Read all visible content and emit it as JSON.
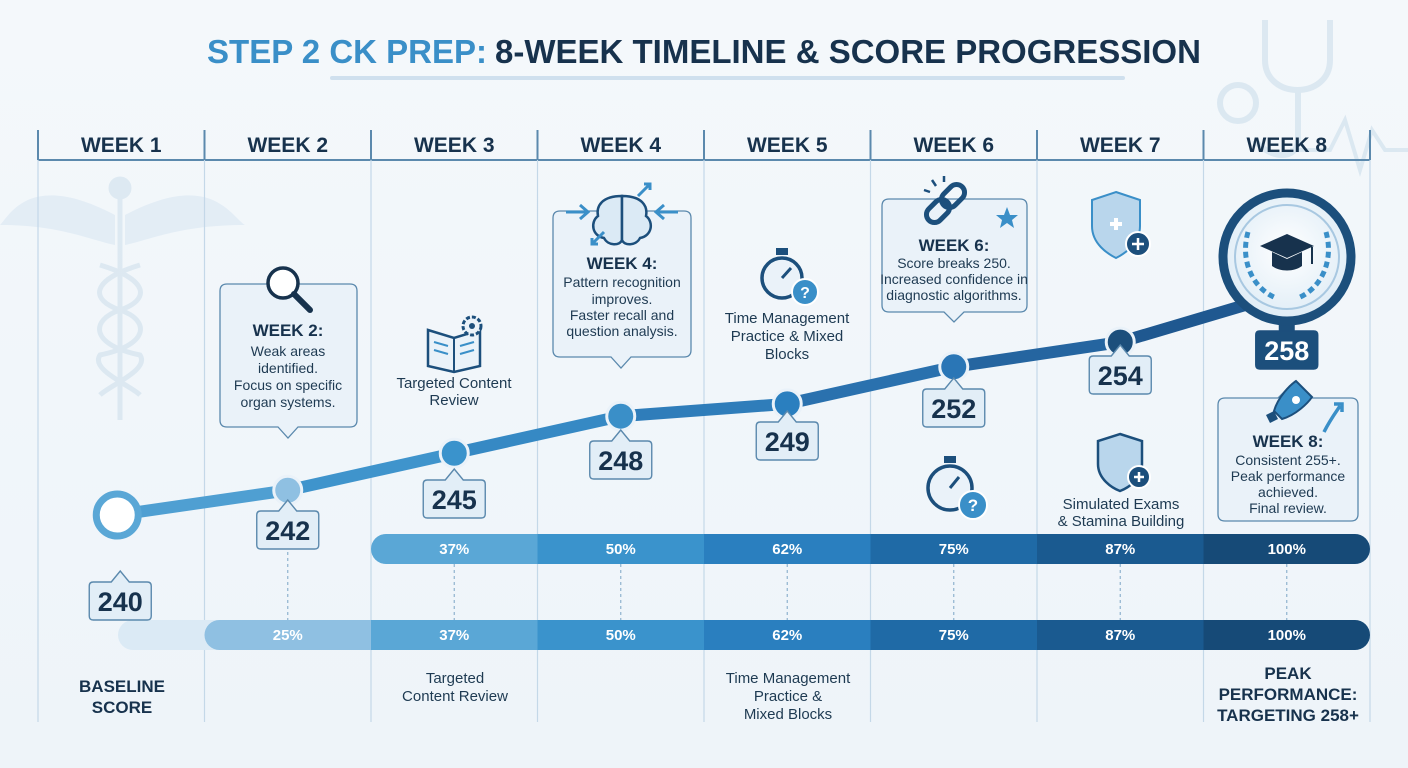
{
  "title": {
    "part1": "STEP 2 CK PREP:",
    "part2": "8-WEEK TIMELINE & SCORE PROGRESSION"
  },
  "colors": {
    "accent_light": "#3a8fc8",
    "navy": "#1c4f7c",
    "ink": "#17324d"
  },
  "chart_data": {
    "type": "line",
    "title": "STEP 2 CK PREP: 8-WEEK TIMELINE & SCORE PROGRESSION",
    "categories": [
      "WEEK 1",
      "WEEK 2",
      "WEEK 3",
      "WEEK 4",
      "WEEK 5",
      "WEEK 6",
      "WEEK 7",
      "WEEK 8"
    ],
    "scores": [
      240,
      242,
      245,
      248,
      249,
      252,
      254,
      258
    ],
    "score_labels": [
      "240",
      "242",
      "245",
      "248",
      "249",
      "252",
      "254",
      "258"
    ],
    "progress_row_1": {
      "values": [
        37,
        50,
        62,
        75,
        87,
        100
      ],
      "labels": [
        "37%",
        "50%",
        "62%",
        "75%",
        "87%",
        "100%"
      ]
    },
    "progress_row_2": {
      "values": [
        25,
        37,
        50,
        62,
        75,
        87,
        100
      ],
      "labels": [
        "25%",
        "37%",
        "50%",
        "62%",
        "75%",
        "87%",
        "100%"
      ]
    },
    "callouts": {
      "w2": {
        "title": "WEEK 2:",
        "lines": [
          "Weak areas",
          "identified.",
          "Focus on specific",
          "organ systems."
        ]
      },
      "w4": {
        "title": "WEEK 4:",
        "lines": [
          "Pattern recognition",
          "improves.",
          "Faster recall and",
          "question analysis."
        ]
      },
      "w6": {
        "title": "WEEK 6:",
        "lines": [
          "Score breaks 250.",
          "Increased confidence in",
          "diagnostic algorithms."
        ]
      },
      "w8": {
        "title": "WEEK 8:",
        "lines": [
          "Consistent 255+.",
          "Peak performance",
          "achieved.",
          "Final review."
        ]
      }
    },
    "mid_labels": {
      "w3": [
        "Targeted Content",
        "Review"
      ],
      "w5": [
        "Time Management",
        "Practice & Mixed",
        "Blocks"
      ],
      "w7": [
        "Simulated Exams",
        "& Stamina Building"
      ]
    },
    "bottom_labels": {
      "w1": [
        "BASELINE",
        "SCORE"
      ],
      "w3": [
        "Targeted",
        "Content Review"
      ],
      "w5": [
        "Time Management",
        "Practice &",
        "Mixed Blocks"
      ],
      "w8": [
        "PEAK",
        "PERFORMANCE:",
        "TARGETING 258+"
      ]
    }
  }
}
